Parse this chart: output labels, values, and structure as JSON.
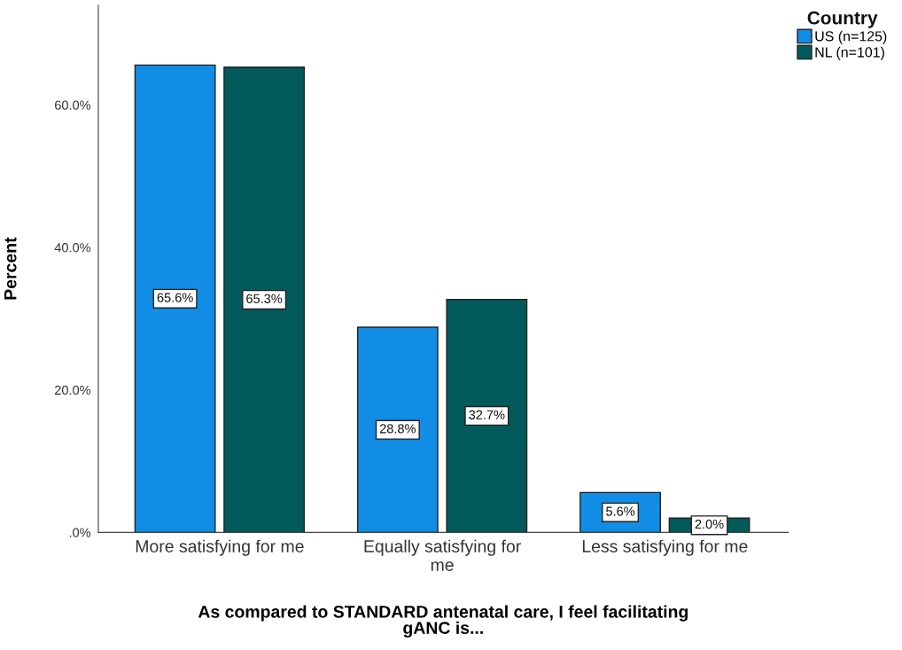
{
  "chart_data": {
    "type": "bar",
    "xlabel": "As compared to STANDARD antenatal care, I feel facilitating\ngANC is...",
    "ylabel": "Percent",
    "legend_title": "Country",
    "categories": [
      "More satisfying for me",
      "Equally satisfying for\nme",
      "Less satisfying for me"
    ],
    "series": [
      {
        "name": "US (n=125)",
        "color": "#118de6",
        "values": [
          65.6,
          28.8,
          5.6
        ],
        "value_labels": [
          "65.6%",
          "28.8%",
          "5.6%"
        ]
      },
      {
        "name": "NL (n=101)",
        "color": "#025a5a",
        "values": [
          65.3,
          32.7,
          2.0
        ],
        "value_labels": [
          "65.3%",
          "32.7%",
          "2.0%"
        ]
      }
    ],
    "ylim": [
      0,
      74
    ],
    "yticks": [
      {
        "value": 0,
        "label": ".0%"
      },
      {
        "value": 20,
        "label": "20.0%"
      },
      {
        "value": 40,
        "label": "40.0%"
      },
      {
        "value": 60,
        "label": "60.0%"
      }
    ],
    "grid": false,
    "legend": "top right"
  }
}
